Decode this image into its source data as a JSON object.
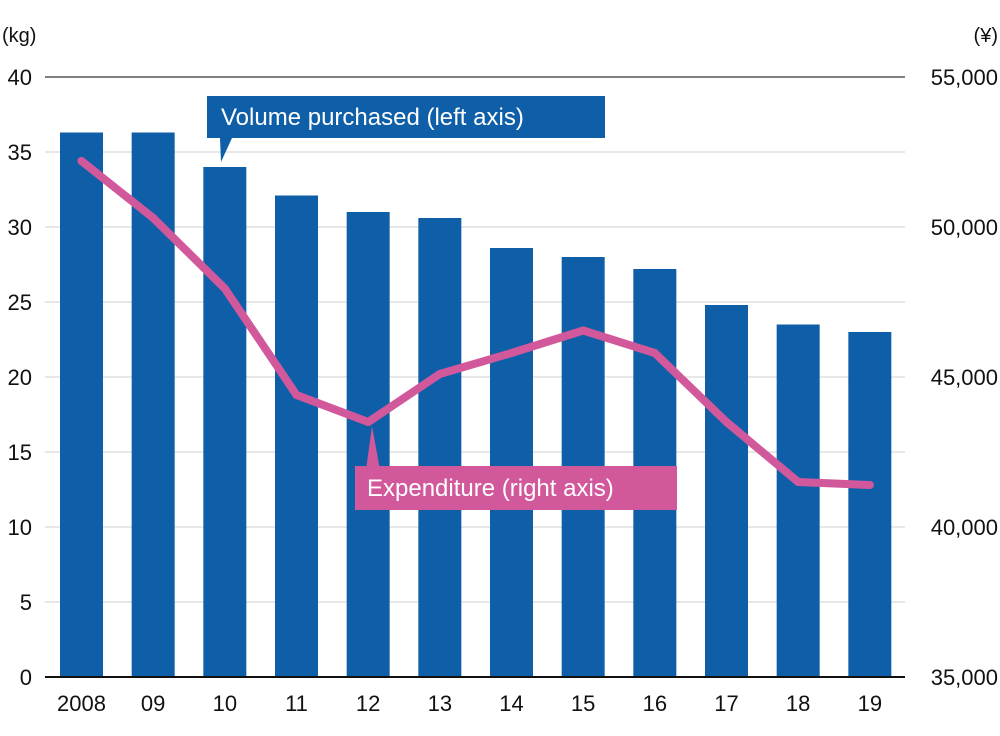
{
  "chart_data": {
    "type": "bar+line",
    "categories": [
      "2008",
      "09",
      "10",
      "11",
      "12",
      "13",
      "14",
      "15",
      "16",
      "17",
      "18",
      "19"
    ],
    "series": [
      {
        "name": "Volume purchased (left axis)",
        "axis": "left",
        "type": "bar",
        "color": "#0f5fa8",
        "values": [
          36.3,
          36.3,
          34.0,
          32.1,
          31.0,
          30.6,
          28.6,
          28.0,
          27.2,
          24.8,
          23.5,
          23.0
        ]
      },
      {
        "name": "Expenditure (right axis)",
        "axis": "right",
        "type": "line",
        "color": "#d2589c",
        "values": [
          52200,
          50300,
          47950,
          44400,
          43500,
          45100,
          45800,
          46550,
          45800,
          43500,
          41500,
          41400
        ]
      }
    ],
    "left_axis": {
      "unit": "(kg)",
      "min": 0,
      "max": 40,
      "ticks": [
        "0",
        "5",
        "10",
        "15",
        "20",
        "25",
        "30",
        "35",
        "40"
      ]
    },
    "right_axis": {
      "unit": "(¥)",
      "min": 35000,
      "max": 55000,
      "ticks": [
        "35,000",
        "40,000",
        "45,000",
        "50,000",
        "55,000"
      ]
    },
    "grid": true,
    "gridline_color": "#cfcfcf",
    "axis_line_color": "#111111"
  }
}
